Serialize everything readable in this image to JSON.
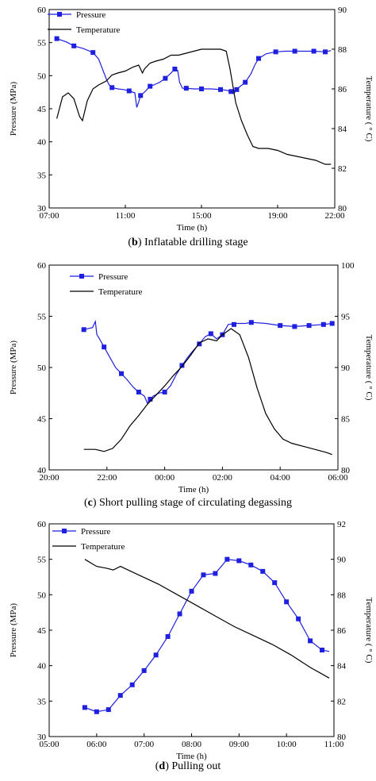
{
  "chart_data": [
    {
      "type": "line",
      "caption_letter": "b",
      "caption_text": " Inflatable drilling stage",
      "xlabel": "Time (h)",
      "ylabel": "Pressure (MPa)",
      "y2label": "Temperature ( ° C)",
      "xlim": [
        7,
        22
      ],
      "xticks": [
        7,
        11,
        15,
        19,
        22
      ],
      "xticklabels": [
        "07:00",
        "11:00",
        "15:00",
        "19:00",
        "22:00"
      ],
      "ylim": [
        30,
        60
      ],
      "yticks": [
        30,
        35,
        40,
        45,
        50,
        55,
        60
      ],
      "y2lim": [
        80,
        90
      ],
      "y2ticks": [
        80,
        82,
        84,
        86,
        88,
        90
      ],
      "legend": "top-left",
      "series": [
        {
          "name": "Pressure",
          "axis": "left",
          "marker": "square",
          "color": "#1f1fe0",
          "x": [
            7.4,
            7.9,
            8.3,
            8.8,
            9.3,
            9.6,
            9.8,
            10.0,
            10.15,
            10.3,
            10.6,
            10.9,
            11.2,
            11.5,
            11.6,
            11.7,
            11.8,
            12.0,
            12.3,
            12.5,
            12.8,
            13.1,
            13.4,
            13.6,
            13.75,
            13.85,
            14.0,
            14.2,
            14.6,
            15.0,
            15.5,
            16.0,
            16.3,
            16.55,
            16.7,
            16.85,
            17.0,
            17.3,
            17.6,
            17.8,
            18.0,
            18.4,
            18.9,
            19.4,
            19.9,
            20.4,
            20.9,
            21.5,
            21.8
          ],
          "y": [
            55.6,
            55.1,
            54.5,
            54.1,
            53.5,
            52.5,
            51.0,
            49.5,
            48.6,
            48.2,
            48.0,
            47.9,
            47.7,
            47.4,
            45.2,
            46.0,
            47.0,
            47.5,
            48.4,
            48.6,
            49.0,
            49.6,
            50.4,
            51.0,
            50.8,
            49.0,
            48.1,
            48.1,
            48.0,
            48.0,
            48.0,
            47.9,
            47.8,
            47.6,
            47.3,
            47.9,
            48.3,
            49.0,
            50.3,
            51.6,
            52.6,
            53.3,
            53.6,
            53.7,
            53.7,
            53.7,
            53.7,
            53.6,
            53.8
          ],
          "marker_x": [
            7.4,
            8.3,
            9.3,
            10.3,
            11.2,
            11.8,
            12.3,
            13.1,
            13.6,
            14.2,
            15.0,
            16.0,
            16.55,
            16.85,
            17.3,
            18.0,
            18.9,
            19.9,
            20.9,
            21.5
          ],
          "marker_y": [
            55.6,
            54.5,
            53.5,
            48.2,
            47.7,
            47.0,
            48.4,
            49.6,
            51.0,
            48.1,
            48.0,
            47.9,
            47.6,
            47.9,
            49.0,
            52.6,
            53.6,
            53.7,
            53.7,
            53.6
          ]
        },
        {
          "name": "Temperature",
          "axis": "right",
          "marker": "none",
          "color": "#000000",
          "x": [
            7.4,
            7.7,
            8.0,
            8.3,
            8.6,
            8.75,
            9.0,
            9.3,
            9.6,
            10.0,
            10.3,
            10.6,
            11.0,
            11.4,
            11.7,
            11.9,
            12.0,
            12.3,
            12.6,
            13.0,
            13.4,
            13.8,
            14.2,
            14.6,
            15.0,
            15.5,
            16.0,
            16.3,
            16.5,
            16.8,
            17.1,
            17.4,
            17.7,
            18.0,
            18.5,
            19.0,
            19.5,
            20.0,
            20.5,
            21.0,
            21.5,
            21.8
          ],
          "y": [
            84.5,
            85.6,
            85.8,
            85.5,
            84.6,
            84.4,
            85.4,
            86.0,
            86.2,
            86.4,
            86.7,
            86.8,
            86.9,
            87.1,
            87.2,
            86.8,
            87.0,
            87.3,
            87.4,
            87.5,
            87.7,
            87.7,
            87.8,
            87.9,
            88.0,
            88.0,
            88.0,
            87.9,
            87.0,
            85.3,
            84.4,
            83.7,
            83.1,
            83.0,
            83.0,
            82.9,
            82.7,
            82.6,
            82.5,
            82.4,
            82.2,
            82.2
          ]
        }
      ]
    },
    {
      "type": "line",
      "caption_letter": "c",
      "caption_text": " Short pulling stage of circulating degassing",
      "xlabel": "Time (h)",
      "ylabel": "Pressure (MPa)",
      "y2label": "Temperature ( ° C)",
      "xlim": [
        20,
        30
      ],
      "xticks": [
        20,
        22,
        24,
        26,
        28,
        30
      ],
      "xticklabels": [
        "20:00",
        "22:00",
        "00:00",
        "02:00",
        "04:00",
        "06:00"
      ],
      "ylim": [
        40,
        60
      ],
      "yticks": [
        40,
        45,
        50,
        55,
        60
      ],
      "y2lim": [
        80,
        100
      ],
      "y2ticks": [
        80,
        85,
        90,
        95,
        100
      ],
      "legend": "top-left",
      "series": [
        {
          "name": "Pressure",
          "axis": "left",
          "marker": "square",
          "color": "#1f1fe0",
          "x": [
            21.2,
            21.5,
            21.6,
            21.65,
            21.7,
            21.9,
            22.1,
            22.3,
            22.5,
            22.7,
            22.9,
            23.1,
            23.3,
            23.4,
            23.6,
            23.8,
            24.0,
            24.2,
            24.4,
            24.6,
            24.8,
            25.0,
            25.2,
            25.4,
            25.6,
            25.8,
            26.0,
            26.2,
            26.5,
            26.8,
            27.0,
            27.5,
            28.0,
            28.5,
            29.0,
            29.5,
            29.8
          ],
          "y": [
            53.7,
            53.9,
            54.5,
            53.2,
            53.0,
            52.0,
            51.0,
            50.0,
            49.4,
            48.8,
            48.1,
            47.6,
            47.2,
            46.5,
            47.2,
            47.5,
            47.6,
            48.2,
            49.3,
            50.2,
            51.0,
            51.7,
            52.3,
            53.0,
            53.3,
            52.8,
            53.2,
            54.2,
            54.3,
            54.3,
            54.4,
            54.3,
            54.1,
            54.0,
            54.1,
            54.2,
            54.3
          ],
          "marker_x": [
            21.2,
            21.9,
            22.5,
            23.1,
            23.5,
            24.0,
            24.6,
            25.2,
            25.6,
            26.0,
            26.4,
            27.0,
            28.0,
            28.5,
            29.0,
            29.5,
            29.8
          ],
          "marker_y": [
            53.7,
            52.0,
            49.4,
            47.6,
            46.9,
            47.6,
            50.2,
            52.3,
            53.3,
            53.2,
            54.2,
            54.4,
            54.1,
            54.0,
            54.1,
            54.2,
            54.3
          ]
        },
        {
          "name": "Temperature",
          "axis": "right",
          "marker": "none",
          "color": "#000000",
          "x": [
            21.2,
            21.6,
            21.9,
            22.2,
            22.5,
            22.8,
            23.1,
            23.4,
            23.7,
            24.0,
            24.3,
            24.6,
            24.9,
            25.2,
            25.5,
            25.8,
            26.0,
            26.3,
            26.6,
            26.9,
            27.2,
            27.5,
            27.8,
            28.1,
            28.4,
            28.8,
            29.2,
            29.6,
            29.8
          ],
          "y": [
            82.0,
            82.0,
            81.8,
            82.1,
            83.0,
            84.3,
            85.3,
            86.4,
            87.3,
            88.2,
            89.2,
            90.1,
            91.2,
            92.4,
            92.8,
            92.6,
            93.2,
            93.8,
            93.2,
            91.0,
            88.0,
            85.5,
            84.0,
            83.0,
            82.6,
            82.3,
            82.0,
            81.7,
            81.5
          ]
        }
      ]
    },
    {
      "type": "line",
      "caption_letter": "d",
      "caption_text": " Pulling out",
      "xlabel": "Time (h)",
      "ylabel": "Pressure (MPa)",
      "y2label": "Temperature ( ° C)",
      "xlim": [
        5,
        11
      ],
      "xticks": [
        5,
        6,
        7,
        8,
        9,
        10,
        11
      ],
      "xticklabels": [
        "05:00",
        "06:00",
        "07:00",
        "08:00",
        "09:00",
        "10:00",
        "11:00"
      ],
      "ylim": [
        30,
        60
      ],
      "yticks": [
        30,
        35,
        40,
        45,
        50,
        55,
        60
      ],
      "y2lim": [
        80,
        92
      ],
      "y2ticks": [
        80,
        82,
        84,
        86,
        88,
        90,
        92
      ],
      "legend": "top-left",
      "series": [
        {
          "name": "Pressure",
          "axis": "left",
          "marker": "square",
          "color": "#1f1fe0",
          "x": [
            5.75,
            6.0,
            6.25,
            6.5,
            6.75,
            7.0,
            7.25,
            7.5,
            7.75,
            8.0,
            8.25,
            8.5,
            8.75,
            9.0,
            9.25,
            9.5,
            9.75,
            10.0,
            10.25,
            10.5,
            10.75,
            10.9
          ],
          "y": [
            34.1,
            33.5,
            33.8,
            35.8,
            37.3,
            39.3,
            41.5,
            44.1,
            47.3,
            50.5,
            52.8,
            53.0,
            55.0,
            54.8,
            54.2,
            53.3,
            51.7,
            49.0,
            46.6,
            43.5,
            42.2,
            42.0
          ],
          "marker_x": [
            5.75,
            6.0,
            6.25,
            6.5,
            6.75,
            7.0,
            7.25,
            7.5,
            7.75,
            8.0,
            8.25,
            8.5,
            8.75,
            9.0,
            9.25,
            9.5,
            9.75,
            10.0,
            10.25,
            10.5,
            10.75
          ],
          "marker_y": [
            34.1,
            33.5,
            33.8,
            35.8,
            37.3,
            39.3,
            41.5,
            44.1,
            47.3,
            50.5,
            52.8,
            53.0,
            55.0,
            54.8,
            54.2,
            53.3,
            51.7,
            49.0,
            46.6,
            43.5,
            42.2
          ]
        },
        {
          "name": "Temperature",
          "axis": "right",
          "marker": "none",
          "color": "#000000",
          "x": [
            5.75,
            6.0,
            6.2,
            6.35,
            6.5,
            6.9,
            7.3,
            7.7,
            8.1,
            8.5,
            8.9,
            9.3,
            9.7,
            10.1,
            10.5,
            10.9
          ],
          "y": [
            90.0,
            89.6,
            89.5,
            89.4,
            89.6,
            89.1,
            88.6,
            88.0,
            87.4,
            86.8,
            86.2,
            85.7,
            85.2,
            84.6,
            83.9,
            83.3
          ]
        }
      ]
    }
  ]
}
